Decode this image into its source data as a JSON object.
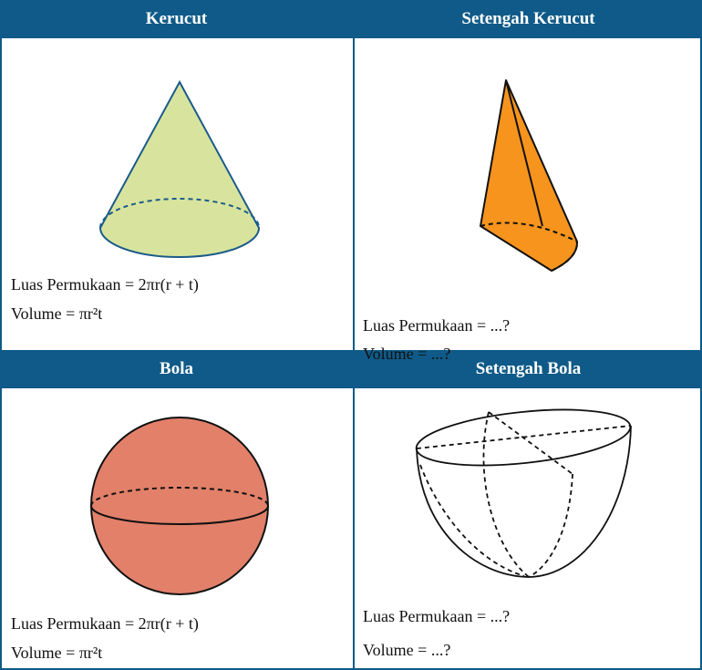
{
  "cells": [
    {
      "title": "Kerucut",
      "lines": [
        "Luas Permukaan = 2πr(r + t)",
        "Volume = πr²t"
      ]
    },
    {
      "title": "Setengah Kerucut",
      "lines": [
        "Luas Permukaan = ...?",
        "Volume = ...?"
      ]
    },
    {
      "title": "Bola",
      "lines": [
        "Luas Permukaan = 2πr(r + t)",
        "Volume = πr²t"
      ]
    },
    {
      "title": "Setengah Bola",
      "lines": [
        "Luas Permukaan = ...?",
        "Volume = ...?"
      ]
    }
  ]
}
